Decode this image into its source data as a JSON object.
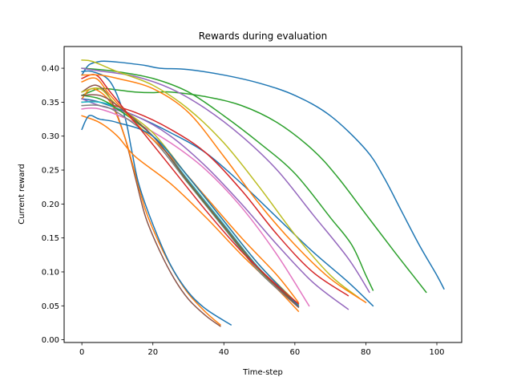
{
  "chart_data": {
    "type": "line",
    "title": "Rewards during evaluation",
    "xlabel": "Time-step",
    "ylabel": "Current reward",
    "xlim": [
      -5,
      107
    ],
    "ylim": [
      -0.004,
      0.432
    ],
    "xticks": [
      0,
      20,
      40,
      60,
      80,
      100
    ],
    "yticks": [
      0.0,
      0.05,
      0.1,
      0.15,
      0.2,
      0.25,
      0.3,
      0.35,
      0.4
    ],
    "ytick_labels": [
      "0.00",
      "0.05",
      "0.10",
      "0.15",
      "0.20",
      "0.25",
      "0.30",
      "0.35",
      "0.40"
    ],
    "grid": false,
    "legend": "none",
    "series": [
      {
        "color": "#1f77b4",
        "points": [
          [
            0,
            0.39
          ],
          [
            2,
            0.405
          ],
          [
            5,
            0.41
          ],
          [
            8,
            0.41
          ],
          [
            12,
            0.408
          ],
          [
            18,
            0.404
          ],
          [
            22,
            0.4
          ],
          [
            30,
            0.398
          ],
          [
            40,
            0.39
          ],
          [
            50,
            0.378
          ],
          [
            60,
            0.36
          ],
          [
            70,
            0.33
          ],
          [
            80,
            0.28
          ],
          [
            85,
            0.24
          ],
          [
            90,
            0.19
          ],
          [
            95,
            0.14
          ],
          [
            100,
            0.095
          ],
          [
            102,
            0.075
          ]
        ]
      },
      {
        "color": "#2ca02c",
        "points": [
          [
            0,
            0.36
          ],
          [
            5,
            0.37
          ],
          [
            10,
            0.368
          ],
          [
            15,
            0.365
          ],
          [
            20,
            0.364
          ],
          [
            25,
            0.365
          ],
          [
            35,
            0.358
          ],
          [
            45,
            0.345
          ],
          [
            55,
            0.32
          ],
          [
            65,
            0.28
          ],
          [
            72,
            0.24
          ],
          [
            80,
            0.185
          ],
          [
            88,
            0.13
          ],
          [
            94,
            0.09
          ],
          [
            97,
            0.07
          ]
        ]
      },
      {
        "color": "#2ca02c",
        "points": [
          [
            0,
            0.4
          ],
          [
            5,
            0.398
          ],
          [
            10,
            0.395
          ],
          [
            20,
            0.385
          ],
          [
            30,
            0.365
          ],
          [
            40,
            0.33
          ],
          [
            50,
            0.29
          ],
          [
            60,
            0.245
          ],
          [
            70,
            0.18
          ],
          [
            76,
            0.14
          ],
          [
            80,
            0.095
          ],
          [
            82,
            0.073
          ]
        ]
      },
      {
        "color": "#9467bd",
        "points": [
          [
            0,
            0.4
          ],
          [
            5,
            0.396
          ],
          [
            15,
            0.388
          ],
          [
            25,
            0.37
          ],
          [
            35,
            0.34
          ],
          [
            45,
            0.3
          ],
          [
            55,
            0.25
          ],
          [
            65,
            0.185
          ],
          [
            75,
            0.12
          ],
          [
            81,
            0.07
          ]
        ]
      },
      {
        "color": "#1f77b4",
        "points": [
          [
            0,
            0.355
          ],
          [
            5,
            0.35
          ],
          [
            15,
            0.33
          ],
          [
            25,
            0.305
          ],
          [
            35,
            0.275
          ],
          [
            45,
            0.23
          ],
          [
            55,
            0.18
          ],
          [
            65,
            0.13
          ],
          [
            75,
            0.085
          ],
          [
            82,
            0.05
          ]
        ]
      },
      {
        "color": "#bcbd22",
        "points": [
          [
            0,
            0.412
          ],
          [
            3,
            0.41
          ],
          [
            10,
            0.395
          ],
          [
            20,
            0.375
          ],
          [
            30,
            0.34
          ],
          [
            40,
            0.29
          ],
          [
            50,
            0.225
          ],
          [
            60,
            0.155
          ],
          [
            70,
            0.095
          ],
          [
            78,
            0.062
          ]
        ]
      },
      {
        "color": "#8c564b",
        "points": [
          [
            0,
            0.365
          ],
          [
            4,
            0.375
          ],
          [
            8,
            0.355
          ],
          [
            12,
            0.3
          ],
          [
            15,
            0.24
          ],
          [
            18,
            0.18
          ],
          [
            22,
            0.13
          ],
          [
            26,
            0.09
          ],
          [
            30,
            0.06
          ],
          [
            35,
            0.035
          ],
          [
            39,
            0.02
          ]
        ]
      },
      {
        "color": "#ff7f0e",
        "points": [
          [
            0,
            0.355
          ],
          [
            3,
            0.37
          ],
          [
            8,
            0.35
          ],
          [
            12,
            0.3
          ],
          [
            15,
            0.245
          ],
          [
            18,
            0.19
          ],
          [
            22,
            0.14
          ],
          [
            26,
            0.1
          ],
          [
            30,
            0.068
          ],
          [
            35,
            0.04
          ],
          [
            39,
            0.022
          ]
        ]
      },
      {
        "color": "#1f77b4",
        "points": [
          [
            0,
            0.395
          ],
          [
            3,
            0.395
          ],
          [
            8,
            0.38
          ],
          [
            12,
            0.33
          ],
          [
            14,
            0.28
          ],
          [
            16,
            0.23
          ],
          [
            20,
            0.17
          ],
          [
            25,
            0.11
          ],
          [
            30,
            0.07
          ],
          [
            35,
            0.045
          ],
          [
            42,
            0.022
          ]
        ]
      },
      {
        "color": "#ff7f0e",
        "points": [
          [
            0,
            0.33
          ],
          [
            5,
            0.32
          ],
          [
            10,
            0.3
          ],
          [
            15,
            0.27
          ],
          [
            25,
            0.23
          ],
          [
            35,
            0.18
          ],
          [
            45,
            0.125
          ],
          [
            55,
            0.075
          ],
          [
            61,
            0.042
          ]
        ]
      },
      {
        "color": "#e377c2",
        "points": [
          [
            0,
            0.34
          ],
          [
            5,
            0.34
          ],
          [
            15,
            0.32
          ],
          [
            25,
            0.29
          ],
          [
            35,
            0.25
          ],
          [
            45,
            0.195
          ],
          [
            55,
            0.125
          ],
          [
            64,
            0.05
          ]
        ]
      },
      {
        "color": "#d62728",
        "points": [
          [
            0,
            0.35
          ],
          [
            5,
            0.35
          ],
          [
            15,
            0.335
          ],
          [
            25,
            0.31
          ],
          [
            35,
            0.275
          ],
          [
            45,
            0.22
          ],
          [
            55,
            0.155
          ],
          [
            65,
            0.1
          ],
          [
            75,
            0.065
          ]
        ]
      },
      {
        "color": "#9467bd",
        "points": [
          [
            0,
            0.355
          ],
          [
            5,
            0.345
          ],
          [
            15,
            0.33
          ],
          [
            25,
            0.3
          ],
          [
            35,
            0.255
          ],
          [
            45,
            0.2
          ],
          [
            55,
            0.14
          ],
          [
            65,
            0.085
          ],
          [
            75,
            0.045
          ]
        ]
      },
      {
        "color": "#17becf",
        "points": [
          [
            0,
            0.35
          ],
          [
            5,
            0.35
          ],
          [
            10,
            0.34
          ],
          [
            20,
            0.3
          ],
          [
            30,
            0.235
          ],
          [
            40,
            0.17
          ],
          [
            50,
            0.105
          ],
          [
            61,
            0.05
          ]
        ]
      },
      {
        "color": "#7f7f7f",
        "points": [
          [
            0,
            0.345
          ],
          [
            5,
            0.345
          ],
          [
            10,
            0.335
          ],
          [
            20,
            0.295
          ],
          [
            30,
            0.23
          ],
          [
            40,
            0.165
          ],
          [
            50,
            0.1
          ],
          [
            61,
            0.048
          ]
        ]
      },
      {
        "color": "#2ca02c",
        "points": [
          [
            0,
            0.36
          ],
          [
            5,
            0.355
          ],
          [
            10,
            0.34
          ],
          [
            20,
            0.3
          ],
          [
            30,
            0.232
          ],
          [
            40,
            0.167
          ],
          [
            50,
            0.103
          ],
          [
            61,
            0.05
          ]
        ]
      },
      {
        "color": "#ff7f0e",
        "points": [
          [
            0,
            0.38
          ],
          [
            4,
            0.385
          ],
          [
            8,
            0.36
          ],
          [
            15,
            0.32
          ],
          [
            25,
            0.27
          ],
          [
            35,
            0.21
          ],
          [
            45,
            0.15
          ],
          [
            55,
            0.095
          ],
          [
            61,
            0.055
          ]
        ]
      },
      {
        "color": "#bcbd22",
        "points": [
          [
            0,
            0.365
          ],
          [
            5,
            0.37
          ],
          [
            10,
            0.345
          ],
          [
            20,
            0.305
          ],
          [
            30,
            0.24
          ],
          [
            40,
            0.175
          ],
          [
            50,
            0.11
          ],
          [
            61,
            0.052
          ]
        ]
      },
      {
        "color": "#8c564b",
        "points": [
          [
            0,
            0.36
          ],
          [
            5,
            0.36
          ],
          [
            10,
            0.345
          ],
          [
            20,
            0.3
          ],
          [
            30,
            0.233
          ],
          [
            40,
            0.168
          ],
          [
            50,
            0.104
          ],
          [
            61,
            0.048
          ]
        ]
      },
      {
        "color": "#1f77b4",
        "points": [
          [
            0,
            0.31
          ],
          [
            2,
            0.33
          ],
          [
            5,
            0.325
          ],
          [
            10,
            0.32
          ],
          [
            20,
            0.3
          ],
          [
            30,
            0.24
          ],
          [
            40,
            0.175
          ],
          [
            50,
            0.11
          ],
          [
            61,
            0.05
          ]
        ]
      },
      {
        "color": "#d62728",
        "points": [
          [
            0,
            0.385
          ],
          [
            4,
            0.39
          ],
          [
            8,
            0.365
          ],
          [
            15,
            0.32
          ],
          [
            25,
            0.255
          ],
          [
            35,
            0.19
          ],
          [
            45,
            0.13
          ],
          [
            55,
            0.08
          ],
          [
            61,
            0.053
          ]
        ]
      },
      {
        "color": "#ff7f0e",
        "points": [
          [
            0,
            0.39
          ],
          [
            5,
            0.39
          ],
          [
            10,
            0.385
          ],
          [
            20,
            0.37
          ],
          [
            30,
            0.335
          ],
          [
            40,
            0.27
          ],
          [
            50,
            0.2
          ],
          [
            60,
            0.14
          ],
          [
            70,
            0.09
          ],
          [
            80,
            0.055
          ]
        ]
      }
    ]
  }
}
